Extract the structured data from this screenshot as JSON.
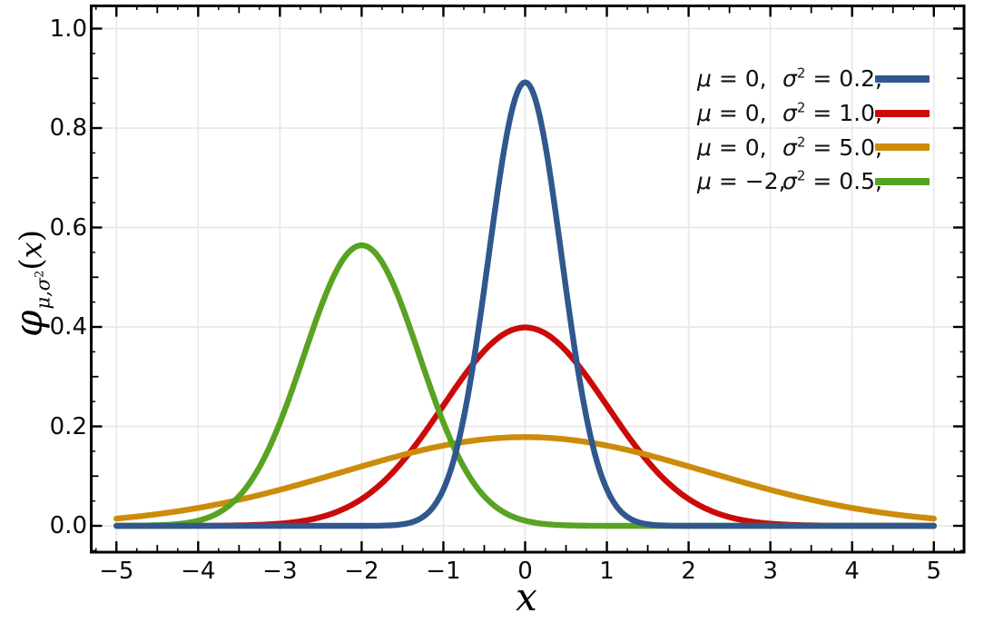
{
  "chart_data": {
    "type": "line",
    "title": "",
    "xlabel": "x",
    "ylabel": "φμ,σ²(x)",
    "ylabel_parts": {
      "phi": "φ",
      "sub": "μ,σ",
      "sup": "2",
      "open": "(",
      "var": "x",
      "close": ")"
    },
    "curve_type": "normal_pdf",
    "x_range": [
      -5,
      5
    ],
    "ylim": [
      0,
      1.0
    ],
    "grid": true,
    "legend_position": "top-right-inside",
    "x_ticks": {
      "values": [
        -5,
        -4,
        -3,
        -2,
        -1,
        0,
        1,
        2,
        3,
        4,
        5
      ],
      "labels": [
        "−5",
        "−4",
        "−3",
        "−2",
        "−1",
        "0",
        "1",
        "2",
        "3",
        "4",
        "5"
      ],
      "medium_step": 0.5,
      "minor_step": 0.25
    },
    "y_ticks": {
      "values": [
        0,
        0.2,
        0.4,
        0.6,
        0.8,
        1.0
      ],
      "labels": [
        "0.0",
        "0.2",
        "0.4",
        "0.6",
        "0.8",
        "1.0"
      ],
      "medium_step": 0.1,
      "minor_step": 0.05
    },
    "series": [
      {
        "id": "blue",
        "name": "μ = 0, σ² = 0.2",
        "mu": 0,
        "sigma2": 0.2,
        "peak_x": 0,
        "peak_y": 0.892,
        "color": "#30588e",
        "legend": {
          "mu_sym": "μ",
          "mu_rest": " = 0,",
          "var_sym": "σ",
          "var_sup": "2",
          "var_rest": " = 0.2,"
        }
      },
      {
        "id": "red",
        "name": "μ = 0, σ² = 1.0",
        "mu": 0,
        "sigma2": 1.0,
        "peak_x": 0,
        "peak_y": 0.399,
        "color": "#cc0a0a",
        "legend": {
          "mu_sym": "μ",
          "mu_rest": " = 0,",
          "var_sym": "σ",
          "var_sup": "2",
          "var_rest": " = 1.0,"
        }
      },
      {
        "id": "orange",
        "name": "μ = 0, σ² = 5.0",
        "mu": 0,
        "sigma2": 5.0,
        "peak_x": 0,
        "peak_y": 0.178,
        "color": "#cc8c0a",
        "legend": {
          "mu_sym": "μ",
          "mu_rest": " = 0,",
          "var_sym": "σ",
          "var_sup": "2",
          "var_rest": " = 5.0,"
        }
      },
      {
        "id": "green",
        "name": "μ = −2, σ² = 0.5",
        "mu": -2,
        "sigma2": 0.5,
        "peak_x": -2,
        "peak_y": 0.564,
        "color": "#58a322",
        "legend": {
          "mu_sym": "μ",
          "mu_rest": " = −2,",
          "var_sym": "σ",
          "var_sup": "2",
          "var_rest": " = 0.5,"
        }
      }
    ],
    "style": {
      "background": "#ffffff",
      "grid_color": "#e8e8e8",
      "frame_color": "#000000",
      "tick_color": "#000000",
      "text_color": "#0a0a0a",
      "curve_width": 6.4,
      "draw_order": [
        "red",
        "orange",
        "green",
        "blue"
      ]
    }
  }
}
